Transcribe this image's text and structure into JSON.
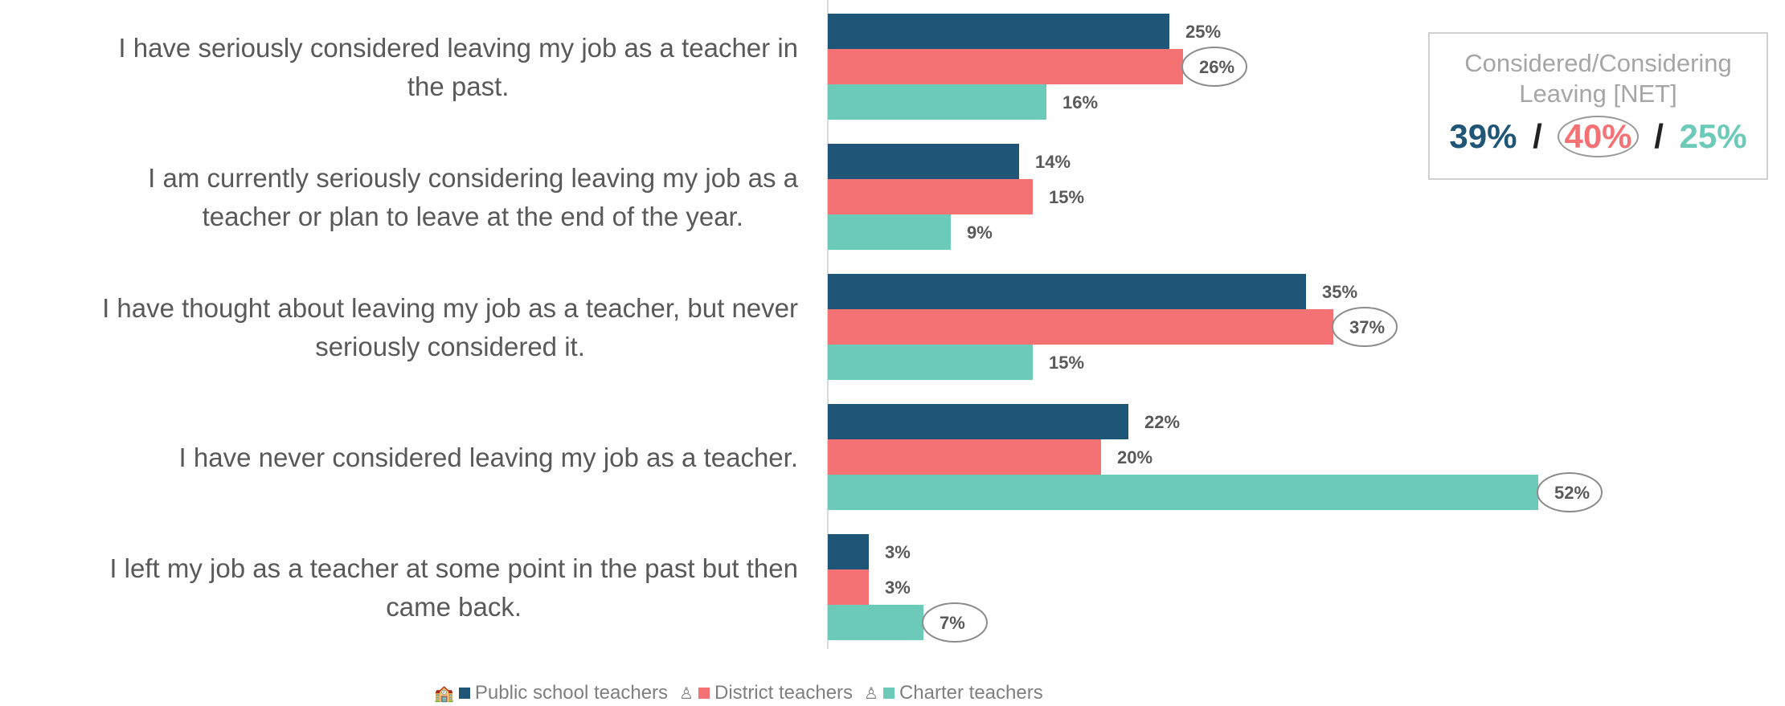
{
  "chart_data": {
    "type": "bar",
    "orientation": "horizontal",
    "categories": [
      [
        "I have seriously considered leaving my job as a teacher in",
        "the past."
      ],
      [
        "I am currently seriously considering leaving my job as a",
        "teacher or plan to leave at the end of the year."
      ],
      [
        "I have thought about leaving my job as a teacher, but never",
        "seriously considered it."
      ],
      [
        "I have never considered leaving my job as a teacher."
      ],
      [
        "I left my job as a teacher at some point in the past but then",
        "came back."
      ]
    ],
    "series": [
      {
        "name": "Public school teachers",
        "color": "#1f5577",
        "values": [
          25,
          14,
          35,
          22,
          3
        ]
      },
      {
        "name": "District teachers",
        "color": "#f47174",
        "values": [
          26,
          15,
          37,
          20,
          3
        ]
      },
      {
        "name": "Charter teachers",
        "color": "#6ccab8",
        "values": [
          16,
          9,
          15,
          52,
          7
        ]
      }
    ],
    "value_suffix": "%",
    "circled": [
      [
        0,
        1
      ],
      [
        2,
        1
      ],
      [
        3,
        2
      ],
      [
        4,
        2
      ]
    ],
    "xlim": [
      0,
      60
    ],
    "grid": false,
    "legend_position": "bottom"
  },
  "net_box": {
    "title": "Considered/Considering Leaving [NET]",
    "values": [
      {
        "text": "39%",
        "color": "#1f5577"
      },
      {
        "text": "40%",
        "color": "#f47174"
      },
      {
        "text": "25%",
        "color": "#6ccab8"
      }
    ],
    "separator": "/"
  },
  "legend": {
    "items": [
      {
        "icon": "school-icon",
        "label": "Public school teachers",
        "color": "#1f5577"
      },
      {
        "icon": "teacher-icon",
        "label": "District teachers",
        "color": "#f47174"
      },
      {
        "icon": "teacher-icon",
        "label": "Charter teachers",
        "color": "#6ccab8"
      }
    ]
  }
}
